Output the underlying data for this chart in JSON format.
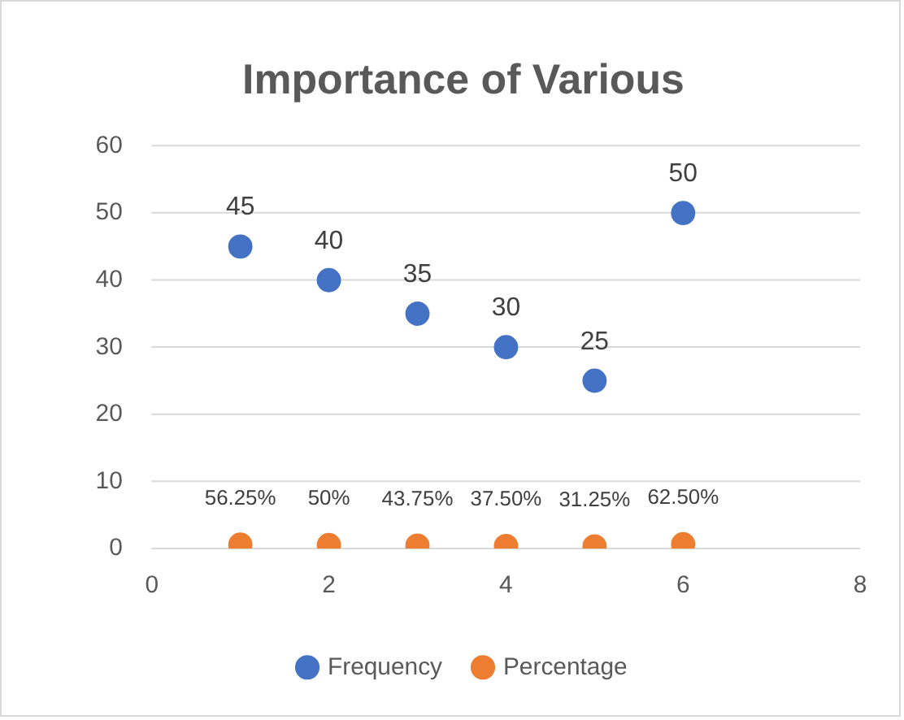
{
  "chart_data": {
    "type": "scatter",
    "title": "Importance of Various",
    "x": [
      1,
      2,
      3,
      4,
      5,
      6
    ],
    "series": [
      {
        "name": "Frequency",
        "color": "#4472c4",
        "values": [
          45,
          40,
          35,
          30,
          25,
          50
        ],
        "value_labels": [
          "45",
          "40",
          "35",
          "30",
          "25",
          "50"
        ]
      },
      {
        "name": "Percentage",
        "color": "#ed7d31",
        "values": [
          0.5625,
          0.5,
          0.4375,
          0.375,
          0.3125,
          0.625
        ],
        "value_labels": [
          "56.25%",
          "50%",
          "43.75%",
          "37.50%",
          "31.25%",
          "62.50%"
        ]
      }
    ],
    "xlim": [
      0,
      8
    ],
    "xticks": [
      0,
      2,
      4,
      6,
      8
    ],
    "ylim": [
      0,
      60
    ],
    "yticks": [
      0,
      10,
      20,
      30,
      40,
      50,
      60
    ],
    "grid": "y",
    "legend": "bottom",
    "marker": "circle"
  }
}
